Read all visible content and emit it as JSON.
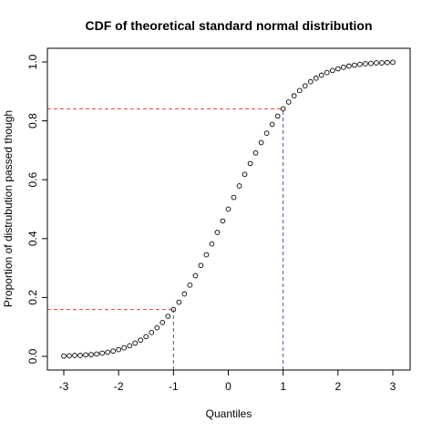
{
  "chart_data": {
    "type": "scatter",
    "title": "CDF of theoretical standard normal distribution",
    "xlabel": "Quantiles",
    "ylabel": "Proportion of distrubution passed though",
    "xlim": [
      -3,
      3
    ],
    "ylim": [
      0,
      1
    ],
    "x_ticks": [
      "-3",
      "-2",
      "-1",
      "0",
      "1",
      "2",
      "3"
    ],
    "y_ticks": [
      "0.0",
      "0.2",
      "0.4",
      "0.6",
      "0.8",
      "1.0"
    ],
    "grid": false,
    "legend": "none",
    "series": [
      {
        "x": [
          -3.0,
          -2.9,
          -2.8,
          -2.7,
          -2.6,
          -2.5,
          -2.4,
          -2.3,
          -2.2,
          -2.1,
          -2.0,
          -1.9,
          -1.8,
          -1.7,
          -1.6,
          -1.5,
          -1.4,
          -1.3,
          -1.2,
          -1.1,
          -1.0,
          -0.9,
          -0.8,
          -0.7,
          -0.6,
          -0.5,
          -0.4,
          -0.3,
          -0.2,
          -0.1,
          0.0,
          0.1,
          0.2,
          0.3,
          0.4,
          0.5,
          0.6,
          0.7,
          0.8,
          0.9,
          1.0,
          1.1,
          1.2,
          1.3,
          1.4,
          1.5,
          1.6,
          1.7,
          1.8,
          1.9,
          2.0,
          2.1,
          2.2,
          2.3,
          2.4,
          2.5,
          2.6,
          2.7,
          2.8,
          2.9,
          3.0
        ],
        "y": [
          0.001,
          0.002,
          0.003,
          0.003,
          0.005,
          0.006,
          0.008,
          0.011,
          0.014,
          0.018,
          0.023,
          0.029,
          0.036,
          0.045,
          0.055,
          0.067,
          0.081,
          0.097,
          0.115,
          0.136,
          0.159,
          0.184,
          0.212,
          0.242,
          0.274,
          0.309,
          0.345,
          0.382,
          0.421,
          0.46,
          0.5,
          0.54,
          0.579,
          0.618,
          0.655,
          0.691,
          0.726,
          0.758,
          0.788,
          0.816,
          0.841,
          0.864,
          0.885,
          0.903,
          0.919,
          0.933,
          0.945,
          0.955,
          0.964,
          0.971,
          0.977,
          0.982,
          0.986,
          0.989,
          0.992,
          0.994,
          0.995,
          0.997,
          0.997,
          0.998,
          0.999
        ],
        "marker": "open-circle",
        "color": "#000000"
      }
    ],
    "reference_lines": [
      {
        "type": "horizontal",
        "y": 0.159,
        "x_from": -3,
        "x_to": -1,
        "color": "#e8413b",
        "style": "dashed"
      },
      {
        "type": "horizontal",
        "y": 0.841,
        "x_from": -3,
        "x_to": 1,
        "color": "#e8413b",
        "style": "dashed"
      },
      {
        "type": "vertical",
        "x": -1,
        "y_from": 0,
        "y_to": 0.159,
        "color": "#3a55b8",
        "style": "dashed"
      },
      {
        "type": "vertical",
        "x": 1,
        "y_from": 0,
        "y_to": 0.841,
        "color": "#3a55b8",
        "style": "dashed"
      }
    ]
  }
}
